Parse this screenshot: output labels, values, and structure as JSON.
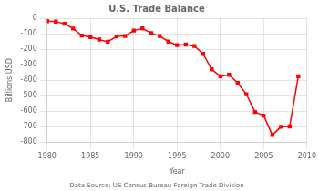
{
  "chart_data": {
    "type": "line",
    "title": "U.S. Trade Balance",
    "xlabel": "Year",
    "ylabel": "Billions USD",
    "annotations": [
      "Data Source: US Census Bureau Foreign Trade Division"
    ],
    "x": [
      1980,
      1981,
      1982,
      1983,
      1984,
      1985,
      1986,
      1987,
      1988,
      1989,
      1990,
      1991,
      1992,
      1993,
      1994,
      1995,
      1996,
      1997,
      1998,
      1999,
      2000,
      2001,
      2002,
      2003,
      2004,
      2005,
      2006,
      2007,
      2008,
      2009
    ],
    "values": [
      -19,
      -22,
      -36,
      -67,
      -112,
      -122,
      -138,
      -152,
      -118,
      -115,
      -80,
      -66,
      -96,
      -115,
      -151,
      -174,
      -170,
      -180,
      -230,
      -330,
      -375,
      -365,
      -418,
      -490,
      -605,
      -628,
      -753,
      -700,
      -698,
      -375
    ],
    "color": "#ff0000",
    "marker": "square",
    "xlim": [
      1980,
      2010
    ],
    "xticks": [
      1980,
      1985,
      1990,
      1995,
      2000,
      2005,
      2010
    ],
    "ylim": [
      -800,
      0
    ],
    "yticks": [
      0,
      -100,
      -200,
      -300,
      -400,
      -500,
      -600,
      -700,
      -800
    ],
    "grid": true
  }
}
